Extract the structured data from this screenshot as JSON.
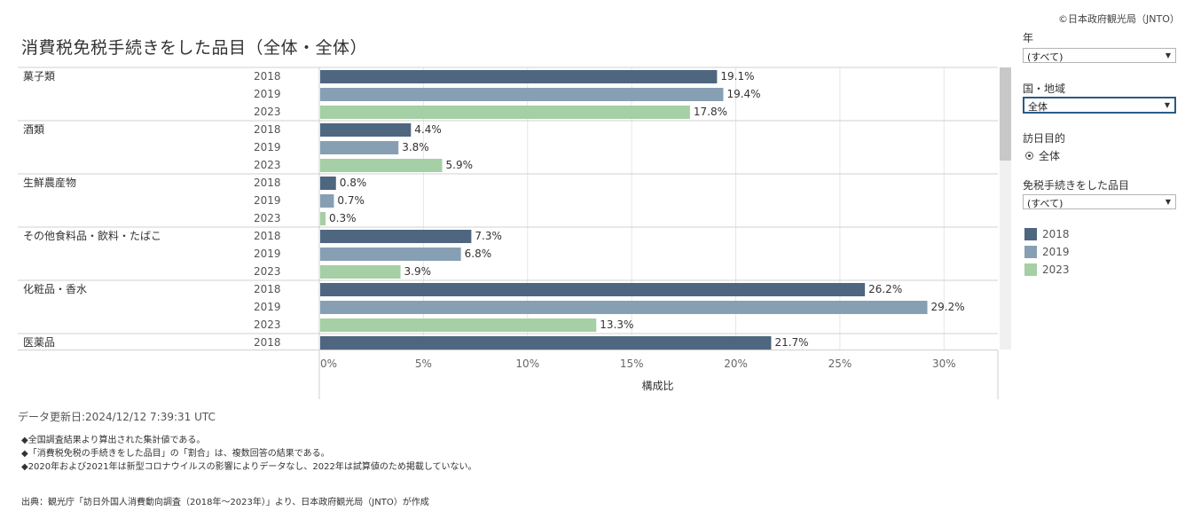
{
  "copyright": "©日本政府観光局（JNTO）",
  "title": "消費税免税手続きをした品目（全体・全体）",
  "colors": {
    "2018": "#4e6680",
    "2019": "#879fb3",
    "2023": "#a5cfa5",
    "grid": "#e6e6e6",
    "sep": "#d0d0d0"
  },
  "chart_data": {
    "type": "bar",
    "orientation": "horizontal",
    "xlabel": "構成比",
    "xlim": [
      0,
      32.5
    ],
    "ticks": [
      0,
      5,
      10,
      15,
      20,
      25,
      30
    ],
    "tick_labels": [
      "0%",
      "5%",
      "10%",
      "15%",
      "20%",
      "25%",
      "30%"
    ],
    "groups": [
      {
        "category": "菓子類",
        "rows": [
          {
            "year": "2018",
            "value": 19.1,
            "label": "19.1%"
          },
          {
            "year": "2019",
            "value": 19.4,
            "label": "19.4%"
          },
          {
            "year": "2023",
            "value": 17.8,
            "label": "17.8%"
          }
        ]
      },
      {
        "category": "酒類",
        "rows": [
          {
            "year": "2018",
            "value": 4.4,
            "label": "4.4%"
          },
          {
            "year": "2019",
            "value": 3.8,
            "label": "3.8%"
          },
          {
            "year": "2023",
            "value": 5.9,
            "label": "5.9%"
          }
        ]
      },
      {
        "category": "生鮮農産物",
        "rows": [
          {
            "year": "2018",
            "value": 0.8,
            "label": "0.8%"
          },
          {
            "year": "2019",
            "value": 0.7,
            "label": "0.7%"
          },
          {
            "year": "2023",
            "value": 0.3,
            "label": "0.3%"
          }
        ]
      },
      {
        "category": "その他食料品・飲料・たばこ",
        "rows": [
          {
            "year": "2018",
            "value": 7.3,
            "label": "7.3%"
          },
          {
            "year": "2019",
            "value": 6.8,
            "label": "6.8%"
          },
          {
            "year": "2023",
            "value": 3.9,
            "label": "3.9%"
          }
        ]
      },
      {
        "category": "化粧品・香水",
        "rows": [
          {
            "year": "2018",
            "value": 26.2,
            "label": "26.2%"
          },
          {
            "year": "2019",
            "value": 29.2,
            "label": "29.2%"
          },
          {
            "year": "2023",
            "value": 13.3,
            "label": "13.3%"
          }
        ]
      },
      {
        "category": "医薬品",
        "rows": [
          {
            "year": "2018",
            "value": 21.7,
            "label": "21.7%"
          }
        ]
      }
    ]
  },
  "footer": {
    "updated": "データ更新日:2024/12/12 7:39:31 UTC",
    "notes": [
      "◆全国調査結果より算出された集計値である。",
      "◆「消費税免税の手続きをした品目」の「割合」は、複数回答の結果である。",
      "◆2020年および2021年は新型コロナウイルスの影響によりデータなし、2022年は試算値のため掲載していない。"
    ],
    "source": "出典：観光庁「訪日外国人消費動向調査（2018年～2023年）」より、日本政府観光局（JNTO）が作成"
  },
  "filters": {
    "year": {
      "label": "年",
      "value": "(すべて)"
    },
    "region": {
      "label": "国・地域",
      "value": "全体"
    },
    "purpose": {
      "label": "訪日目的",
      "option": "全体"
    },
    "item": {
      "label": "免税手続きをした品目",
      "value": "(すべて)"
    }
  },
  "legend": [
    {
      "label": "2018",
      "color": "#4e6680"
    },
    {
      "label": "2019",
      "color": "#879fb3"
    },
    {
      "label": "2023",
      "color": "#a5cfa5"
    }
  ]
}
